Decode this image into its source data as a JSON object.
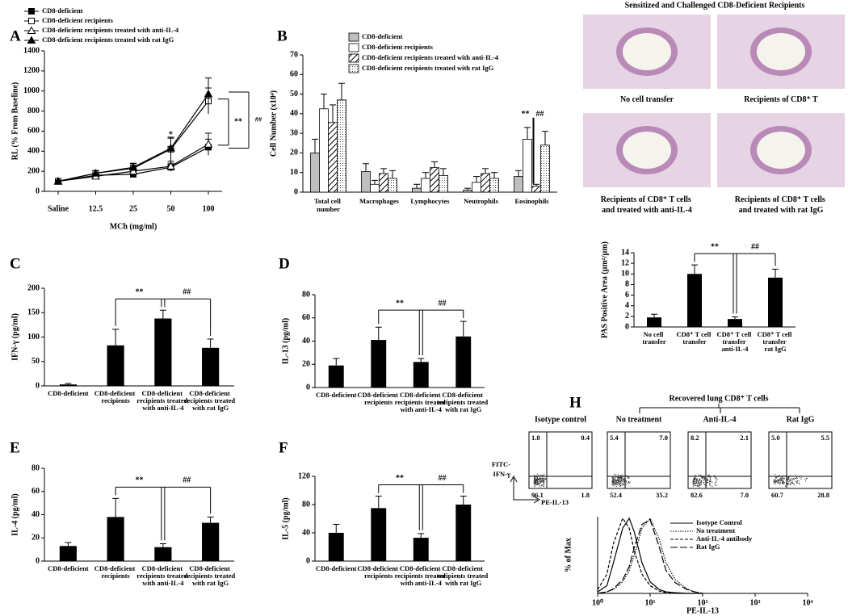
{
  "chart_data": [
    {
      "type": "line",
      "label": "A",
      "categories": [
        "Saline",
        "12.5",
        "25",
        "50",
        "100"
      ],
      "ylabel": "RL (% From Baseline)",
      "xlabel": "MCh (mg/ml)",
      "ylim": [
        0,
        1400
      ],
      "yticks": [
        0,
        200,
        400,
        600,
        800,
        1000,
        1200,
        1400
      ],
      "series": [
        {
          "name": "CD8-deficient",
          "color": "#000000",
          "marker": "square",
          "filled": true,
          "values": [
            100,
            160,
            170,
            240,
            440
          ],
          "errors": [
            10,
            20,
            25,
            40,
            80
          ]
        },
        {
          "name": "CD8-deficient recipients",
          "color": "#000000",
          "marker": "square",
          "filled": false,
          "values": [
            100,
            180,
            230,
            420,
            900
          ],
          "errors": [
            10,
            25,
            45,
            120,
            130
          ]
        },
        {
          "name": "CD8-deficient recipients treated with anti-IL-4",
          "color": "#000000",
          "marker": "triangle",
          "filled": false,
          "values": [
            100,
            150,
            200,
            250,
            470
          ],
          "errors": [
            10,
            20,
            40,
            50,
            110
          ]
        },
        {
          "name": "CD8-deficient recipients treated with rat IgG",
          "color": "#000000",
          "marker": "triangle",
          "filled": true,
          "values": [
            100,
            180,
            240,
            430,
            970
          ],
          "errors": [
            10,
            25,
            40,
            100,
            160
          ]
        }
      ],
      "annotations": [
        "*",
        "**",
        "##"
      ]
    },
    {
      "type": "bar",
      "label": "B",
      "categories": [
        "Total cell number",
        "Macrophages",
        "Lymphocytes",
        "Neutrophils",
        "Eosinophils"
      ],
      "ylabel": "Cell Number (x10⁴)",
      "ylim": [
        0,
        70
      ],
      "yticks": [
        0,
        10,
        20,
        30,
        40,
        50,
        60,
        70
      ],
      "series": [
        {
          "name": "CD8-deficient",
          "color": "#bfbfbf",
          "values": [
            20,
            10.5,
            2,
            1,
            8
          ],
          "errors": [
            7,
            4,
            2,
            1,
            3
          ]
        },
        {
          "name": "CD8-deficient recipients",
          "color": "#ffffff",
          "values": [
            42.5,
            4,
            7,
            5,
            27
          ],
          "errors": [
            7.5,
            2,
            3,
            3,
            6
          ]
        },
        {
          "name": "CD8-deficient recipients treated with anti-IL-4",
          "color": "#ffffff",
          "pattern": "diagonal",
          "values": [
            35.5,
            9.5,
            12.5,
            9.5,
            3
          ],
          "errors": [
            9,
            2.5,
            3,
            2.5,
            1
          ]
        },
        {
          "name": "CD8-deficient recipients treated with rat IgG",
          "color": "#ffffff",
          "pattern": "dots",
          "values": [
            47,
            7,
            8.5,
            7,
            24
          ],
          "errors": [
            8.5,
            4,
            3.5,
            3,
            7
          ]
        }
      ],
      "annotations": [
        "**",
        "##"
      ]
    },
    {
      "type": "bar",
      "label": "C",
      "categories": [
        "CD8-deficient",
        "CD8-deficient recipients",
        "CD8-deficient recipients treated with anti-IL-4",
        "CD8-deficient recipients treated with rat IgG"
      ],
      "ylabel": "IFN-γ (pg/ml)",
      "ylim": [
        0,
        200
      ],
      "yticks": [
        0,
        50,
        100,
        150,
        200
      ],
      "color": "#000000",
      "values": [
        3,
        83,
        138,
        78
      ],
      "errors": [
        2,
        33,
        17,
        18
      ],
      "annotations": [
        "**",
        "##"
      ]
    },
    {
      "type": "bar",
      "label": "D",
      "categories": [
        "CD8-deficient",
        "CD8-deficient recipients",
        "CD8-deficient recipients treated with anti-IL-4",
        "CD8-deficient recipients treated with rat IgG"
      ],
      "ylabel": "IL-13 (pg/ml)",
      "ylim": [
        0,
        80
      ],
      "yticks": [
        0,
        20,
        40,
        60,
        80
      ],
      "color": "#000000",
      "values": [
        19,
        41,
        22,
        44
      ],
      "errors": [
        6,
        11,
        3,
        13
      ],
      "annotations": [
        "**",
        "##"
      ]
    },
    {
      "type": "bar",
      "label": "E",
      "categories": [
        "CD8-deficient",
        "CD8-deficient recipients",
        "CD8-deficient recipients treated with anti-IL-4",
        "CD8-deficient recipients treated with rat IgG"
      ],
      "ylabel": "IL-4 (pg/ml)",
      "ylim": [
        0,
        80
      ],
      "yticks": [
        0,
        20,
        40,
        60,
        80
      ],
      "color": "#000000",
      "values": [
        13,
        38,
        12,
        33
      ],
      "errors": [
        3,
        16,
        3,
        5
      ],
      "annotations": [
        "**",
        "##"
      ]
    },
    {
      "type": "bar",
      "label": "F",
      "categories": [
        "CD8-deficient",
        "CD8-deficient recipients",
        "CD8-deficient recipients treated with anti-IL-4",
        "CD8-deficient recipients treated with rat IgG"
      ],
      "ylabel": "IL-5 (pg/ml)",
      "ylim": [
        0,
        120
      ],
      "yticks": [
        0,
        40,
        80,
        120
      ],
      "color": "#000000",
      "values": [
        40,
        75,
        33,
        80
      ],
      "errors": [
        12,
        17,
        6,
        12
      ],
      "annotations": [
        "**",
        "##"
      ]
    },
    {
      "type": "bar",
      "label": "G",
      "title": "Sensitized and Challenged CD8-Deficient Recipients",
      "image_captions": [
        "No cell transfer",
        "Recipients of CD8⁺ T",
        "Recipients of CD8⁺ T cells and treated with anti-IL-4",
        "Recipients of CD8⁺ T cells and treated with rat IgG"
      ],
      "categories": [
        "No cell transfer",
        "CD8⁺ T cell transfer",
        "CD8⁺ T cell transfer anti-IL-4",
        "CD8⁺ T cell transfer rat IgG"
      ],
      "ylabel": "PAS Positive Area (µm²/µm)",
      "ylim": [
        0,
        14
      ],
      "yticks": [
        0,
        2,
        4,
        6,
        8,
        10,
        12,
        14
      ],
      "color": "#000000",
      "values": [
        1.8,
        10,
        1.5,
        9.3
      ],
      "errors": [
        0.6,
        1.7,
        0.4,
        1.6
      ],
      "annotations": [
        "**",
        "##"
      ]
    },
    {
      "type": "line",
      "label": "H",
      "title": "Recovered lung CD8⁺ T cells",
      "dot_ylabel": [
        "FITC-",
        "IFN-γ"
      ],
      "dot_xlabel": "PE-IL-13",
      "dot_plots": [
        {
          "title": "Isotype control",
          "quadrants": [
            "1.8",
            "0.4",
            "96.1",
            "1.8"
          ]
        },
        {
          "title": "No treatment",
          "quadrants": [
            "5.4",
            "7.0",
            "52.4",
            "35.2"
          ]
        },
        {
          "title": "Anti-IL-4",
          "quadrants": [
            "8.2",
            "2.1",
            "82.6",
            "7.0"
          ]
        },
        {
          "title": "Rat IgG",
          "quadrants": [
            "5.0",
            "5.5",
            "60.7",
            "28.8"
          ]
        }
      ],
      "ylabel": "% of Max",
      "xlabel": "PE-IL-13",
      "xlog": true,
      "xlim": [
        1,
        10000
      ],
      "xticks": [
        {
          "value": 1,
          "label": "10⁰"
        },
        {
          "value": 10,
          "label": "10¹"
        },
        {
          "value": 100,
          "label": "10²"
        },
        {
          "value": 1000,
          "label": "10³"
        },
        {
          "value": 10000,
          "label": "10⁴"
        }
      ],
      "ylim": [
        0,
        100
      ],
      "x": [
        1,
        1.5,
        2,
        3,
        4,
        5,
        7,
        10,
        15,
        20,
        30,
        50,
        70,
        100
      ],
      "series": [
        {
          "name": "Isotype Control",
          "color": "#000000",
          "dash": "solid",
          "values": [
            2,
            10,
            40,
            85,
            98,
            80,
            40,
            15,
            5,
            2,
            1,
            0,
            0,
            0
          ]
        },
        {
          "name": "No treatment",
          "color": "#000000",
          "dash": "dotted",
          "values": [
            0,
            2,
            5,
            15,
            30,
            50,
            85,
            98,
            70,
            40,
            18,
            6,
            2,
            0
          ]
        },
        {
          "name": "Anti-IL-4 antibody",
          "color": "#000000",
          "dash": "short-dash",
          "values": [
            5,
            25,
            65,
            98,
            85,
            55,
            25,
            10,
            3,
            1,
            0,
            0,
            0,
            0
          ]
        },
        {
          "name": "Rat IgG",
          "color": "#000000",
          "dash": "long-dash",
          "values": [
            0,
            2,
            6,
            18,
            35,
            60,
            90,
            96,
            60,
            30,
            14,
            5,
            2,
            0
          ]
        }
      ]
    }
  ]
}
